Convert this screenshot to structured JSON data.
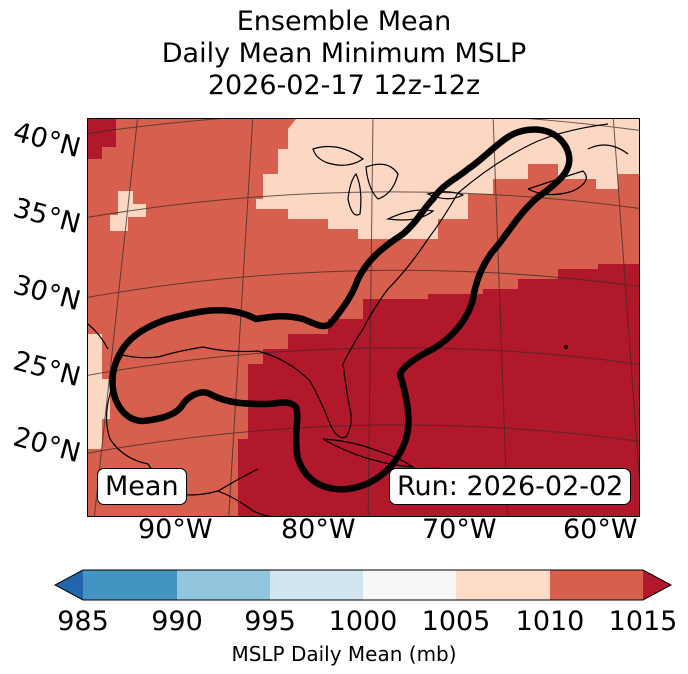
{
  "title": {
    "line1": "Ensemble Mean",
    "line2": "Daily Mean Minimum MSLP",
    "line3": "2026-02-17 12z-12z"
  },
  "map": {
    "latitude_labels": [
      "40°N",
      "35°N",
      "30°N",
      "25°N",
      "20°N"
    ],
    "longitude_labels": [
      "90°W",
      "80°W",
      "70°W",
      "60°W"
    ],
    "fill_colors": {
      "range_1005_1010": "#fbd7c4",
      "range_1010_1015": "#d6604d",
      "above_1015": "#b2182b"
    },
    "contour_color": "#000000",
    "mean_label": "Mean",
    "run_label": "Run: 2026-02-02"
  },
  "colorbar": {
    "ticks": [
      "985",
      "990",
      "995",
      "1000",
      "1005",
      "1010",
      "1015"
    ],
    "label": "MSLP Daily Mean (mb)",
    "colors": [
      "#2166ac",
      "#4393c3",
      "#92c5de",
      "#d1e5f0",
      "#f7f7f7",
      "#fddbc7",
      "#d6604d",
      "#b2182b"
    ]
  }
}
